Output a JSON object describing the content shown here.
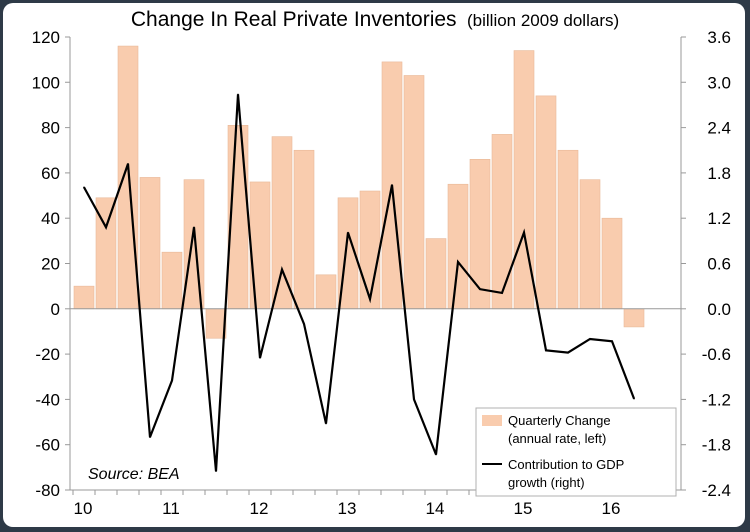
{
  "chart_data": {
    "type": "bar",
    "title": "Change In Real Private Inventories",
    "subtitle": "(billion 2009 dollars)",
    "source": "Source: BEA",
    "x_tick_labels": [
      "10",
      "11",
      "12",
      "13",
      "14",
      "15",
      "16"
    ],
    "left_axis": {
      "ylim": [
        -80,
        120
      ],
      "ticks": [
        "120",
        "100",
        "80",
        "60",
        "40",
        "20",
        "0",
        "-20",
        "-40",
        "-60",
        "-80"
      ]
    },
    "right_axis": {
      "ylim": [
        -2.4,
        3.6
      ],
      "ticks": [
        "3.6",
        "3.0",
        "2.4",
        "1.8",
        "1.2",
        "0.6",
        "0.0",
        "-0.6",
        "-1.2",
        "-1.8",
        "-2.4"
      ]
    },
    "quarters": [
      "2010 Q1",
      "2010 Q2",
      "2010 Q3",
      "2010 Q4",
      "2011 Q1",
      "2011 Q2",
      "2011 Q3",
      "2011 Q4",
      "2012 Q1",
      "2012 Q2",
      "2012 Q3",
      "2012 Q4",
      "2013 Q1",
      "2013 Q2",
      "2013 Q3",
      "2013 Q4",
      "2014 Q1",
      "2014 Q2",
      "2014 Q3",
      "2014 Q4",
      "2015 Q1",
      "2015 Q2",
      "2015 Q3",
      "2015 Q4",
      "2016 Q1",
      "2016 Q2"
    ],
    "series": [
      {
        "name": "Quarterly Change (annual rate, left)",
        "type": "bar",
        "axis": "left",
        "color": "#f9ccae",
        "values": [
          10,
          49,
          116,
          58,
          25,
          57,
          -13,
          81,
          56,
          76,
          70,
          15,
          49,
          52,
          109,
          103,
          31,
          55,
          66,
          77,
          114,
          94,
          70,
          57,
          40,
          -8
        ]
      },
      {
        "name": "Contribution to GDP growth (right)",
        "type": "line",
        "axis": "right",
        "color": "#000000",
        "values": [
          1.61,
          1.08,
          1.92,
          -1.7,
          -0.95,
          1.08,
          -2.15,
          2.84,
          -0.65,
          0.52,
          -0.2,
          -1.52,
          1.01,
          0.13,
          1.64,
          -1.2,
          -1.93,
          0.62,
          0.26,
          0.21,
          1.01,
          -0.55,
          -0.58,
          -0.4,
          -0.43,
          -1.19
        ]
      }
    ],
    "legend_placement": "bottom-right",
    "grid": false
  }
}
